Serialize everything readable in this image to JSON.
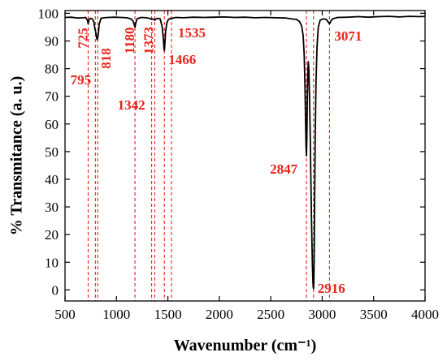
{
  "chart_data": {
    "type": "line",
    "title": "",
    "xlabel": "Wavenumber (cm⁻¹)",
    "ylabel": "% Transmitance (a. u.)",
    "xlim": [
      500,
      4000
    ],
    "ylim": [
      -4,
      101
    ],
    "x_ticks": [
      500,
      1000,
      1500,
      2000,
      2500,
      3000,
      3500,
      4000
    ],
    "y_ticks": [
      0,
      10,
      20,
      30,
      40,
      50,
      60,
      70,
      80,
      90,
      100
    ],
    "grid": false,
    "line_color": "#000000",
    "marker_color": "#e8231b",
    "series": [
      {
        "x": [
          500,
          560,
          620,
          680,
          700,
          718,
          725,
          732,
          745,
          765,
          780,
          790,
          800,
          808,
          812,
          818,
          824,
          832,
          850,
          880,
          920,
          980,
          1040,
          1100,
          1140,
          1160,
          1172,
          1180,
          1188,
          1200,
          1240,
          1290,
          1330,
          1342,
          1350,
          1365,
          1373,
          1382,
          1400,
          1425,
          1445,
          1455,
          1462,
          1466,
          1470,
          1478,
          1490,
          1505,
          1525,
          1535,
          1548,
          1580,
          1650,
          1750,
          1850,
          1950,
          2050,
          2150,
          2250,
          2350,
          2450,
          2550,
          2650,
          2700,
          2750,
          2780,
          2800,
          2815,
          2825,
          2832,
          2838,
          2843,
          2847,
          2851,
          2855,
          2860,
          2865,
          2870,
          2877,
          2884,
          2890,
          2895,
          2900,
          2905,
          2910,
          2913,
          2916,
          2919,
          2922,
          2926,
          2932,
          2940,
          2950,
          2962,
          2980,
          3010,
          3040,
          3060,
          3071,
          3082,
          3100,
          3150,
          3250,
          3350,
          3450,
          3550,
          3650,
          3750,
          3850,
          3950,
          4000
        ],
        "y": [
          98.5,
          98.6,
          98.3,
          98.4,
          98.5,
          97.5,
          96.2,
          97.5,
          98.2,
          98.0,
          97.0,
          94.5,
          93.0,
          91.0,
          90.5,
          91.2,
          92.5,
          96.0,
          98.2,
          98.4,
          98.5,
          98.6,
          98.5,
          98.4,
          98.0,
          97.3,
          96.0,
          95.0,
          96.5,
          98.0,
          98.5,
          98.4,
          98.1,
          97.8,
          98.0,
          97.8,
          97.5,
          97.9,
          98.2,
          98.0,
          95.0,
          91.0,
          87.5,
          86.5,
          88.5,
          93.5,
          96.5,
          97.8,
          98.2,
          98.0,
          98.3,
          98.5,
          98.4,
          98.6,
          98.5,
          98.6,
          98.7,
          98.5,
          98.6,
          98.4,
          98.5,
          98.4,
          98.3,
          98.0,
          97.8,
          97.0,
          95.5,
          92.0,
          85.0,
          75.0,
          62.0,
          52.0,
          48.5,
          55.0,
          68.0,
          78.0,
          82.5,
          80.0,
          70.0,
          55.0,
          40.0,
          28.0,
          18.0,
          9.0,
          3.0,
          1.0,
          0.5,
          3.0,
          12.0,
          30.0,
          55.0,
          75.0,
          88.0,
          95.0,
          97.5,
          98.0,
          97.8,
          96.8,
          96.2,
          97.0,
          98.0,
          98.5,
          98.6,
          98.8,
          98.6,
          98.8,
          98.9,
          98.7,
          98.9,
          98.8,
          98.9
        ]
      }
    ],
    "annotations": [
      {
        "x": 725,
        "label": "725"
      },
      {
        "x": 795,
        "label": "795"
      },
      {
        "x": 818,
        "label": "818"
      },
      {
        "x": 1180,
        "label": "1180"
      },
      {
        "x": 1342,
        "label": "1342"
      },
      {
        "x": 1373,
        "label": "1373"
      },
      {
        "x": 1466,
        "label": "1466"
      },
      {
        "x": 1535,
        "label": "1535"
      },
      {
        "x": 2847,
        "label": "2847"
      },
      {
        "x": 2916,
        "label": "2916"
      },
      {
        "x": 3071,
        "label": "3071"
      }
    ]
  }
}
